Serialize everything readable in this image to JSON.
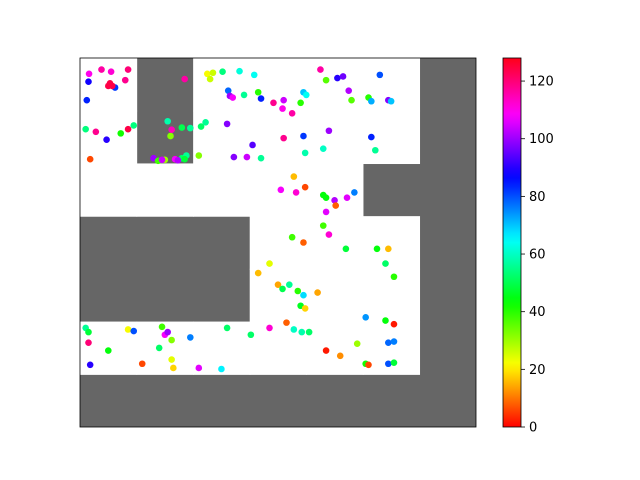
{
  "chart_data": {
    "type": "scatter",
    "title": "",
    "xlabel": "",
    "ylabel": "",
    "axes_ticks_visible": false,
    "grid": false,
    "background_color": "#666666",
    "free_space_color": "#ffffff",
    "map_grid": {
      "cols": 7,
      "rows": 7
    },
    "free_cells": [
      [
        1,
        1
      ],
      [
        3,
        1
      ],
      [
        4,
        1
      ],
      [
        5,
        1
      ],
      [
        6,
        1
      ],
      [
        1,
        2
      ],
      [
        3,
        2
      ],
      [
        4,
        2
      ],
      [
        5,
        2
      ],
      [
        6,
        2
      ],
      [
        1,
        3
      ],
      [
        2,
        3
      ],
      [
        3,
        3
      ],
      [
        4,
        3
      ],
      [
        5,
        3
      ],
      [
        4,
        4
      ],
      [
        5,
        4
      ],
      [
        6,
        4
      ],
      [
        4,
        5
      ],
      [
        5,
        5
      ],
      [
        6,
        5
      ],
      [
        1,
        6
      ],
      [
        2,
        6
      ],
      [
        3,
        6
      ],
      [
        4,
        6
      ],
      [
        5,
        6
      ],
      [
        6,
        6
      ]
    ],
    "colorbar": {
      "colormap": "hsv",
      "range": [
        0,
        128
      ],
      "ticks": [
        "0",
        "20",
        "40",
        "60",
        "80",
        "100",
        "120"
      ]
    },
    "points": [
      [
        1.16,
        1.3,
        110
      ],
      [
        1.38,
        1.22,
        116
      ],
      [
        1.55,
        1.26,
        112
      ],
      [
        1.85,
        1.22,
        120
      ],
      [
        1.15,
        1.45,
        88
      ],
      [
        1.8,
        1.42,
        118
      ],
      [
        1.62,
        1.56,
        82
      ],
      [
        1.12,
        1.8,
        84
      ],
      [
        2.85,
        1.4,
        116
      ],
      [
        1.5,
        1.53,
        124
      ],
      [
        1.57,
        1.53,
        124
      ],
      [
        1.53,
        1.48,
        124
      ],
      [
        1.1,
        2.35,
        54
      ],
      [
        1.28,
        2.4,
        118
      ],
      [
        1.72,
        2.43,
        42
      ],
      [
        1.95,
        2.28,
        54
      ],
      [
        1.47,
        2.55,
        90
      ],
      [
        1.18,
        2.92,
        6
      ],
      [
        1.85,
        2.35,
        124
      ],
      [
        2.3,
        2.9,
        100
      ],
      [
        2.55,
        2.2,
        58
      ],
      [
        2.6,
        2.48,
        32
      ],
      [
        2.8,
        2.32,
        50
      ],
      [
        2.95,
        2.33,
        56
      ],
      [
        2.62,
        2.36,
        114
      ],
      [
        2.5,
        2.93,
        30
      ],
      [
        2.68,
        2.92,
        108
      ],
      [
        2.8,
        2.9,
        52
      ],
      [
        2.88,
        2.85,
        56
      ],
      [
        3.14,
        2.3,
        52
      ],
      [
        2.38,
        2.95,
        38
      ],
      [
        2.45,
        2.93,
        104
      ],
      [
        2.73,
        2.94,
        102
      ],
      [
        2.85,
        2.92,
        48
      ],
      [
        3.1,
        2.85,
        32
      ],
      [
        3.22,
        2.22,
        56
      ],
      [
        3.25,
        1.3,
        22
      ],
      [
        3.35,
        1.28,
        26
      ],
      [
        3.52,
        1.26,
        54
      ],
      [
        3.82,
        1.25,
        62
      ],
      [
        3.3,
        1.4,
        26
      ],
      [
        3.62,
        1.62,
        78
      ],
      [
        3.65,
        1.72,
        100
      ],
      [
        3.7,
        1.75,
        108
      ],
      [
        3.9,
        1.7,
        56
      ],
      [
        4.15,
        1.65,
        40
      ],
      [
        4.08,
        1.32,
        64
      ],
      [
        4.2,
        1.77,
        84
      ],
      [
        4.42,
        1.85,
        118
      ],
      [
        4.6,
        1.8,
        104
      ],
      [
        4.75,
        2.05,
        116
      ],
      [
        4.95,
        1.65,
        70
      ],
      [
        4.9,
        1.85,
        40
      ],
      [
        4.58,
        1.96,
        110
      ],
      [
        5.0,
        1.7,
        64
      ],
      [
        5.25,
        1.22,
        116
      ],
      [
        5.35,
        1.42,
        36
      ],
      [
        5.55,
        1.38,
        90
      ],
      [
        5.65,
        1.35,
        96
      ],
      [
        5.75,
        1.62,
        102
      ],
      [
        5.8,
        1.8,
        36
      ],
      [
        6.1,
        1.75,
        40
      ],
      [
        6.15,
        1.82,
        72
      ],
      [
        6.3,
        1.32,
        80
      ],
      [
        6.45,
        1.8,
        98
      ],
      [
        6.5,
        1.82,
        70
      ],
      [
        6.15,
        2.5,
        84
      ],
      [
        6.22,
        2.75,
        56
      ],
      [
        4.05,
        2.65,
        94
      ],
      [
        3.95,
        2.88,
        104
      ],
      [
        4.2,
        2.9,
        56
      ],
      [
        4.6,
        2.52,
        118
      ],
      [
        4.95,
        2.48,
        82
      ],
      [
        5.3,
        2.72,
        60
      ],
      [
        3.6,
        2.25,
        98
      ],
      [
        3.72,
        2.88,
        98
      ],
      [
        4.98,
        2.8,
        58
      ],
      [
        5.4,
        2.38,
        100
      ],
      [
        4.78,
        3.25,
        16
      ],
      [
        4.98,
        3.45,
        6
      ],
      [
        4.55,
        3.5,
        108
      ],
      [
        4.82,
        3.55,
        112
      ],
      [
        5.3,
        3.6,
        44
      ],
      [
        5.35,
        3.65,
        44
      ],
      [
        5.5,
        3.7,
        102
      ],
      [
        5.52,
        3.8,
        8
      ],
      [
        5.72,
        3.65,
        106
      ],
      [
        5.85,
        3.55,
        76
      ],
      [
        5.35,
        3.92,
        106
      ],
      [
        5.3,
        4.18,
        38
      ],
      [
        5.4,
        4.35,
        112
      ],
      [
        4.95,
        4.5,
        8
      ],
      [
        4.75,
        4.4,
        38
      ],
      [
        5.7,
        4.62,
        48
      ],
      [
        6.25,
        4.62,
        44
      ],
      [
        6.45,
        4.62,
        16
      ],
      [
        6.4,
        4.9,
        52
      ],
      [
        6.55,
        5.15,
        40
      ],
      [
        4.35,
        4.9,
        24
      ],
      [
        4.5,
        5.3,
        14
      ],
      [
        4.7,
        5.3,
        56
      ],
      [
        4.58,
        5.38,
        50
      ],
      [
        4.85,
        5.42,
        40
      ],
      [
        4.95,
        5.5,
        68
      ],
      [
        5.2,
        5.45,
        14
      ],
      [
        4.15,
        5.08,
        16
      ],
      [
        4.9,
        5.7,
        46
      ],
      [
        4.98,
        5.75,
        18
      ],
      [
        4.02,
        6.25,
        52
      ],
      [
        4.65,
        6.02,
        8
      ],
      [
        4.78,
        6.15,
        60
      ],
      [
        4.92,
        6.2,
        58
      ],
      [
        5.05,
        6.2,
        52
      ],
      [
        5.35,
        6.55,
        2
      ],
      [
        5.6,
        6.65,
        12
      ],
      [
        5.9,
        6.42,
        30
      ],
      [
        6.05,
        5.92,
        74
      ],
      [
        6.05,
        6.8,
        42
      ],
      [
        6.1,
        6.82,
        6
      ],
      [
        6.4,
        5.98,
        44
      ],
      [
        6.55,
        6.05,
        2
      ],
      [
        6.45,
        6.4,
        78
      ],
      [
        6.55,
        6.38,
        76
      ],
      [
        6.45,
        6.8,
        80
      ],
      [
        6.55,
        6.78,
        48
      ],
      [
        1.1,
        6.12,
        56
      ],
      [
        1.15,
        6.2,
        48
      ],
      [
        1.15,
        6.4,
        120
      ],
      [
        1.5,
        6.55,
        44
      ],
      [
        1.18,
        6.82,
        90
      ],
      [
        1.85,
        6.15,
        22
      ],
      [
        1.95,
        6.18,
        80
      ],
      [
        2.1,
        6.8,
        6
      ],
      [
        2.45,
        6.1,
        38
      ],
      [
        2.5,
        6.25,
        108
      ],
      [
        2.55,
        6.2,
        100
      ],
      [
        2.4,
        6.5,
        52
      ],
      [
        2.62,
        6.72,
        24
      ],
      [
        2.65,
        6.88,
        18
      ],
      [
        2.95,
        6.3,
        76
      ],
      [
        2.62,
        6.35,
        32
      ],
      [
        3.1,
        6.88,
        106
      ],
      [
        3.6,
        6.12,
        52
      ],
      [
        3.5,
        6.9,
        66
      ],
      [
        4.35,
        6.12,
        112
      ]
    ]
  }
}
